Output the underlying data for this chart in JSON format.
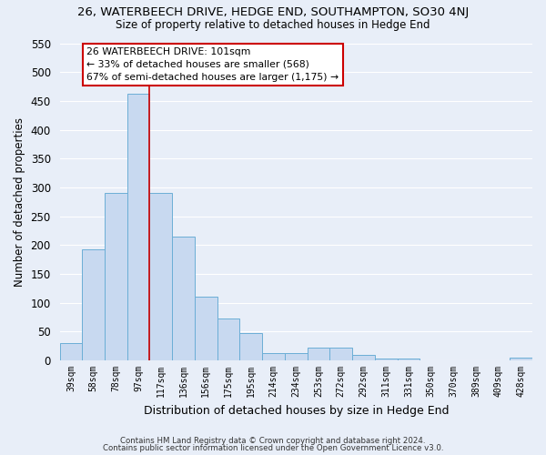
{
  "title": "26, WATERBEECH DRIVE, HEDGE END, SOUTHAMPTON, SO30 4NJ",
  "subtitle": "Size of property relative to detached houses in Hedge End",
  "xlabel": "Distribution of detached houses by size in Hedge End",
  "ylabel": "Number of detached properties",
  "bar_labels": [
    "39sqm",
    "58sqm",
    "78sqm",
    "97sqm",
    "117sqm",
    "136sqm",
    "156sqm",
    "175sqm",
    "195sqm",
    "214sqm",
    "234sqm",
    "253sqm",
    "272sqm",
    "292sqm",
    "311sqm",
    "331sqm",
    "350sqm",
    "370sqm",
    "389sqm",
    "409sqm",
    "428sqm"
  ],
  "bar_values": [
    30,
    192,
    290,
    462,
    290,
    215,
    110,
    73,
    47,
    13,
    13,
    22,
    22,
    9,
    4,
    4,
    0,
    0,
    0,
    0,
    5
  ],
  "bar_color": "#c8d9f0",
  "bar_edge_color": "#6baed6",
  "vline_x_index": 3,
  "vline_color": "#cc0000",
  "annotation_line1": "26 WATERBEECH DRIVE: 101sqm",
  "annotation_line2": "← 33% of detached houses are smaller (568)",
  "annotation_line3": "67% of semi-detached houses are larger (1,175) →",
  "annotation_box_color": "#ffffff",
  "annotation_box_edge": "#cc0000",
  "ylim": [
    0,
    550
  ],
  "yticks": [
    0,
    50,
    100,
    150,
    200,
    250,
    300,
    350,
    400,
    450,
    500,
    550
  ],
  "footer1": "Contains HM Land Registry data © Crown copyright and database right 2024.",
  "footer2": "Contains public sector information licensed under the Open Government Licence v3.0.",
  "bg_color": "#e8eef8",
  "plot_bg_color": "#e8eef8",
  "grid_color": "#ffffff"
}
